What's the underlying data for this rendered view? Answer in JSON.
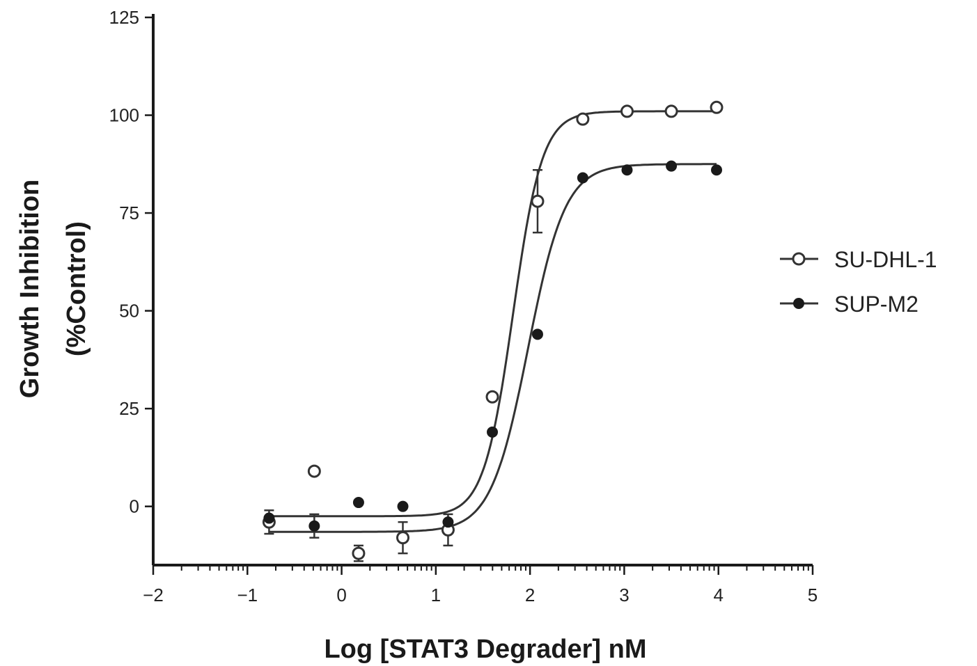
{
  "chart_data": {
    "type": "scatter",
    "title": "",
    "xlabel": "Log [STAT3 Degrader] nM",
    "ylabel": [
      "Growth Inhibition",
      "(%Control)"
    ],
    "xlim": [
      -2,
      5
    ],
    "ylim": [
      -15,
      125
    ],
    "x_ticks": [
      -2,
      -1,
      0,
      1,
      2,
      3,
      4,
      5
    ],
    "y_ticks": [
      0,
      25,
      50,
      75,
      100,
      125
    ],
    "grid": false,
    "legend_position": "right",
    "series": [
      {
        "name": "SU-DHL-1",
        "marker": "open-circle",
        "color": "#333333",
        "x": [
          -0.77,
          -0.29,
          0.18,
          0.65,
          1.13,
          1.6,
          2.08,
          2.56,
          3.03,
          3.5,
          3.98
        ],
        "y": [
          -4,
          9,
          -12,
          -8,
          -6,
          28,
          78,
          99,
          101,
          101,
          102
        ],
        "err": [
          3,
          0,
          2,
          4,
          4,
          0,
          8,
          0,
          0,
          0,
          0
        ],
        "fit": {
          "bottom": -2.5,
          "top": 101,
          "logEC50": 1.82,
          "hill": 2.8
        }
      },
      {
        "name": "SUP-M2",
        "marker": "filled-circle",
        "color": "#1a1a1a",
        "x": [
          -0.77,
          -0.29,
          0.18,
          0.65,
          1.13,
          1.6,
          2.08,
          2.56,
          3.03,
          3.5,
          3.98
        ],
        "y": [
          -3,
          -5,
          1,
          0,
          -4,
          19,
          44,
          84,
          86,
          87,
          86
        ],
        "err": [
          0,
          3,
          0,
          0,
          0,
          0,
          0,
          0,
          0,
          0,
          0
        ],
        "fit": {
          "bottom": -6.5,
          "top": 87.5,
          "logEC50": 1.98,
          "hill": 2.2
        }
      }
    ]
  }
}
